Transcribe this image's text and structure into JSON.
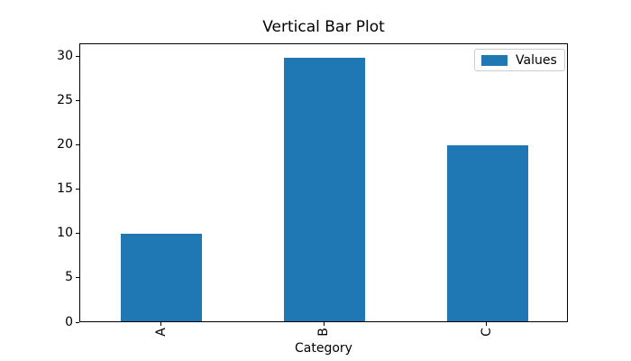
{
  "chart_data": {
    "type": "bar",
    "title": "Vertical Bar Plot",
    "categories": [
      "A",
      "B",
      "C"
    ],
    "values": [
      10,
      30,
      20
    ],
    "xlabel": "Category",
    "ylabel": "",
    "ylim": [
      0,
      31.5
    ],
    "yticks": [
      0,
      5,
      10,
      15,
      20,
      25,
      30
    ],
    "xtick_rotation": 90,
    "bar_color": "#1f77b4",
    "axis_color": "#000000",
    "background_color": "#ffffff",
    "grid": false,
    "legend": {
      "entries": [
        "Values"
      ],
      "position": "upper right",
      "edge_color": "#cccccc"
    }
  }
}
